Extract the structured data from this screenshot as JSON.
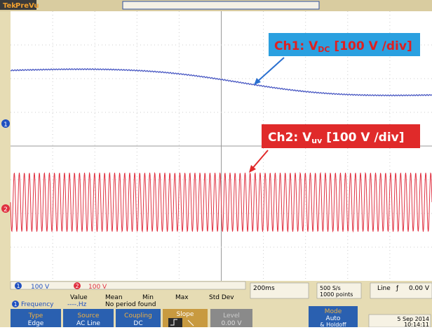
{
  "header": {
    "brand": "Tek",
    "mode": "PreVu"
  },
  "markers": {
    "ch1": "1",
    "ch2": "2"
  },
  "annotations": {
    "ch1": {
      "prefix": "Ch1: V",
      "subscript": "DC",
      "suffix": " [100 V /div]"
    },
    "ch2": {
      "prefix": "Ch2: V",
      "subscript": "uv",
      "suffix": " [100 V /div]"
    }
  },
  "status": {
    "ch1_badge": "1",
    "ch1_scale": "100 V",
    "ch2_badge": "2",
    "ch2_scale": "100 V",
    "timebase": "200ms",
    "sample_rate": "500 S/s",
    "record_length": "1000 points",
    "trigger_source": "Line",
    "trigger_slope": "ƒ",
    "trigger_level": "0.00 V"
  },
  "measurement": {
    "badge": "1",
    "name": "Frequency",
    "value_header": "Value",
    "mean_header": "Mean",
    "min_header": "Min",
    "max_header": "Max",
    "std_header": "Std Dev",
    "value": "----.Hz",
    "message": "No period found"
  },
  "menu": {
    "type": {
      "label": "Type",
      "value": "Edge"
    },
    "source": {
      "label": "Source",
      "value": "AC Line"
    },
    "coupling": {
      "label": "Coupling",
      "value": "DC"
    },
    "slope": {
      "label": "Slope"
    },
    "level": {
      "label": "Level",
      "value": "0.00 V"
    },
    "mode": {
      "label": "Mode",
      "value": "Auto",
      "extra": "& Holdoff"
    },
    "date": {
      "day": "5 Sep 2014",
      "time": "10:14:11"
    }
  }
}
